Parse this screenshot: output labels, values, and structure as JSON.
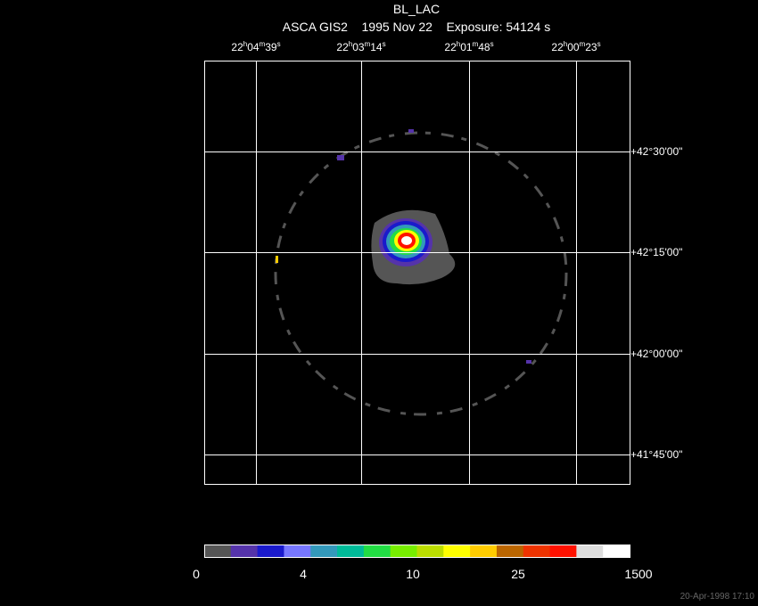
{
  "header": {
    "title": "BL_LAC",
    "subtitle": "ASCA GIS2    1995 Nov 22    Exposure: 54124 s"
  },
  "ra_labels": [
    "22h04m39s",
    "22h03m14s",
    "22h01m48s",
    "22h00m23s"
  ],
  "dec_labels": [
    "+42°30'00\"",
    "+42°15'00\"",
    "+42°00'00\"",
    "+41°45'00\""
  ],
  "colorbar": {
    "colors": [
      "#555555",
      "#5533aa",
      "#1a1acc",
      "#7777ff",
      "#3399bb",
      "#00bb99",
      "#22dd44",
      "#77ee00",
      "#bbdd00",
      "#ffff00",
      "#ffcc00",
      "#bb6600",
      "#ee3300",
      "#ff1100",
      "#dddddd",
      "#ffffff"
    ],
    "labels": [
      0,
      4,
      10,
      25,
      1500
    ]
  },
  "timestamp": "20-Apr-1998 17:10"
}
